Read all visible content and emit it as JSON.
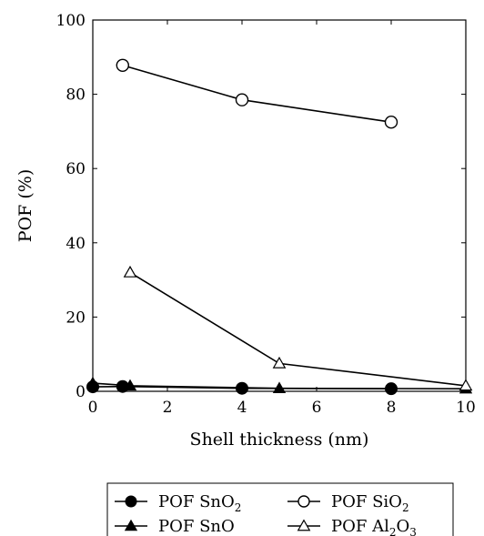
{
  "chart_data": {
    "type": "line",
    "xlabel": "Shell thickness (nm)",
    "ylabel": "POF (%)",
    "xlim": [
      0,
      10
    ],
    "ylim": [
      0,
      100
    ],
    "x_ticks": [
      "0",
      "2",
      "4",
      "6",
      "8",
      "10"
    ],
    "y_ticks": [
      "0",
      "20",
      "40",
      "60",
      "80",
      "100"
    ],
    "grid": false,
    "legend_position": "bottom",
    "series": [
      {
        "name": "POF SnO2",
        "legend_label": {
          "main": "POF SnO",
          "subscripts": [
            "2"
          ],
          "after": [
            ""
          ]
        },
        "marker": "filled-circle",
        "color": "#000000",
        "points": [
          [
            0,
            1.2
          ],
          [
            0.8,
            1.3
          ],
          [
            4,
            0.8
          ],
          [
            8,
            0.7
          ]
        ]
      },
      {
        "name": "POF SiO2",
        "legend_label": {
          "main": "POF SiO",
          "subscripts": [
            "2"
          ],
          "after": [
            ""
          ]
        },
        "marker": "open-circle",
        "color": "#000000",
        "points": [
          [
            0.8,
            87.8
          ],
          [
            4,
            78.5
          ],
          [
            8,
            72.5
          ]
        ]
      },
      {
        "name": "POF SnO",
        "legend_label": {
          "main": "POF SnO",
          "subscripts": [],
          "after": []
        },
        "marker": "filled-triangle",
        "color": "#000000",
        "points": [
          [
            0,
            2.2
          ],
          [
            1,
            1.5
          ],
          [
            5,
            0.8
          ],
          [
            10,
            0.7
          ]
        ]
      },
      {
        "name": "POF Al2O3",
        "legend_label": {
          "main": "POF Al",
          "subscripts": [
            "2",
            "3"
          ],
          "after": [
            "O",
            ""
          ]
        },
        "marker": "open-triangle",
        "color": "#000000",
        "points": [
          [
            1,
            32
          ],
          [
            5,
            7.5
          ],
          [
            10,
            1.5
          ]
        ]
      }
    ]
  }
}
